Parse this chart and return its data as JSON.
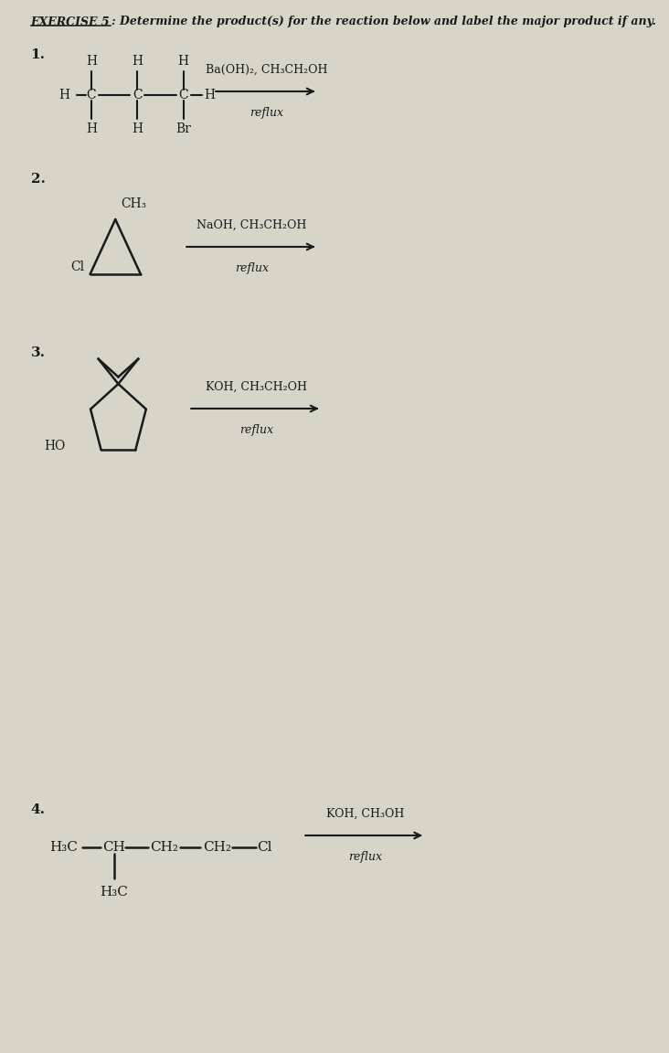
{
  "title_underlined": "EXERCISE 5",
  "title_rest": ": Determine the product(s) for the reaction below and label the major product if any.",
  "bg_color": "#d8d4c8",
  "text_color": "#1a1a1a",
  "reactions": [
    {
      "number": "1.",
      "reagent_line1": "Ba(OH)₂, CH₃CH₂OH",
      "reagent_line2": "reflux"
    },
    {
      "number": "2.",
      "reagent_line1": "NaOH, CH₃CH₂OH",
      "reagent_line2": "reflux"
    },
    {
      "number": "3.",
      "reagent_line1": "KOH, CH₃CH₂OH",
      "reagent_line2": "reflux"
    },
    {
      "number": "4.",
      "reagent_line1": "KOH, CH₃OH",
      "reagent_line2": "reflux"
    }
  ]
}
